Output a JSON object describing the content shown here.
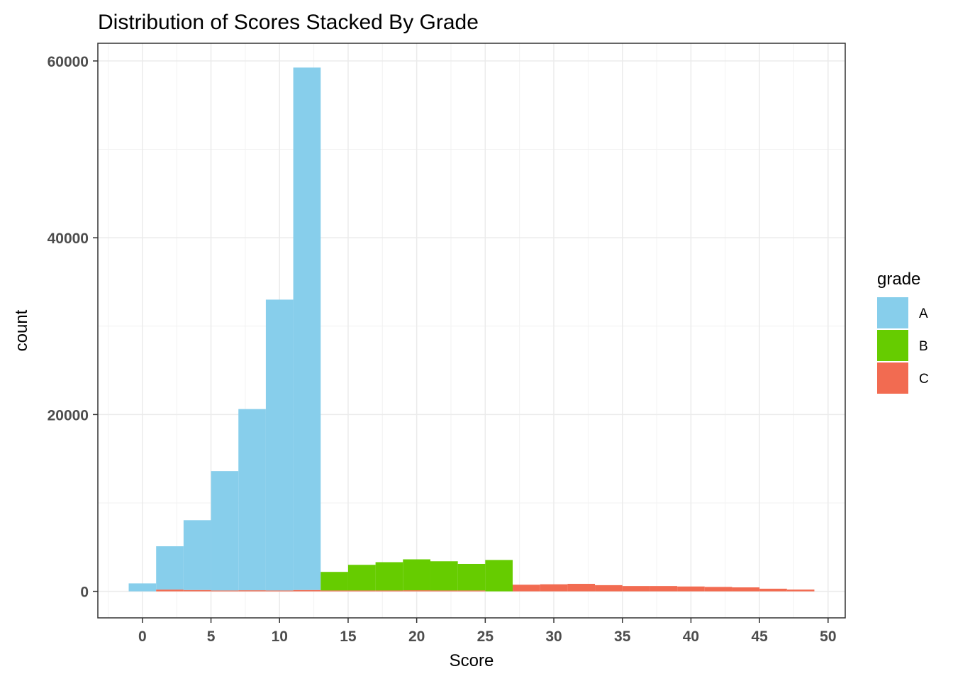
{
  "chart_data": {
    "type": "bar",
    "title": "Distribution of Scores Stacked By Grade",
    "xlabel": "Score",
    "ylabel": "count",
    "xlim": [
      -3.25,
      51.25
    ],
    "ylim": [
      -3000,
      62000
    ],
    "x_ticks": [
      0,
      5,
      10,
      15,
      20,
      25,
      30,
      35,
      40,
      45,
      50
    ],
    "y_ticks": [
      0,
      20000,
      40000,
      60000
    ],
    "y_tick_labels": [
      "0",
      "20000",
      "40000",
      "60000"
    ],
    "grid": true,
    "legend": {
      "title": "grade",
      "position": "right"
    },
    "bin_width": 2,
    "x": [
      0,
      2,
      4,
      6,
      8,
      10,
      12,
      14,
      16,
      18,
      20,
      22,
      24,
      26,
      28,
      30,
      32,
      34,
      36,
      38,
      40,
      42,
      44,
      46,
      48
    ],
    "series": [
      {
        "name": "C",
        "color": "#F26B51",
        "values": [
          0,
          200,
          150,
          100,
          120,
          100,
          150,
          100,
          100,
          100,
          120,
          100,
          100,
          0,
          750,
          800,
          850,
          700,
          600,
          600,
          550,
          500,
          450,
          300,
          200
        ]
      },
      {
        "name": "B",
        "color": "#66CC00",
        "values": [
          0,
          0,
          0,
          0,
          0,
          0,
          0,
          2100,
          2900,
          3200,
          3500,
          3300,
          3000,
          3550,
          0,
          0,
          0,
          0,
          0,
          0,
          0,
          0,
          0,
          0,
          0
        ]
      },
      {
        "name": "A",
        "color": "#87CEEB",
        "values": [
          900,
          4900,
          7900,
          13500,
          20500,
          32900,
          59100,
          0,
          0,
          0,
          0,
          0,
          0,
          0,
          0,
          0,
          0,
          0,
          0,
          0,
          0,
          0,
          0,
          0,
          0
        ]
      }
    ],
    "legend_order": [
      "A",
      "B",
      "C"
    ]
  }
}
